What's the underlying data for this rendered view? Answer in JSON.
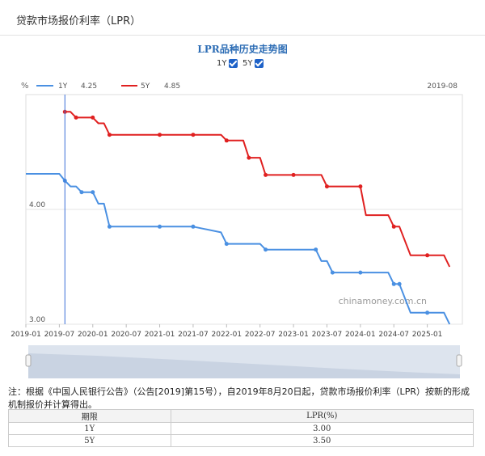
{
  "page": {
    "title": "贷款市场报价利率（LPR）"
  },
  "chart_header": {
    "title": "LPR品种历史走势图",
    "toggles": [
      {
        "label": "1Y",
        "checked": true
      },
      {
        "label": "5Y",
        "checked": true
      }
    ]
  },
  "legend": {
    "unit": "%",
    "items": [
      {
        "name": "1Y",
        "value": "4.25",
        "color": "#4a90e2"
      },
      {
        "name": "5Y",
        "value": "4.85",
        "color": "#e02020"
      }
    ],
    "cursor_date": "2019-08"
  },
  "watermark": "chinamoney.com.cn",
  "note": "注：根据《中国人民银行公告》（公告[2019]第15号），自2019年8月20日起，贷款市场报价利率（LPR）按新的形成机制报价并计算得出。",
  "table": {
    "headers": [
      "期限",
      "LPR(%)"
    ],
    "rows": [
      [
        "1Y",
        "3.00"
      ],
      [
        "5Y",
        "3.50"
      ]
    ]
  },
  "chart_data": {
    "type": "line",
    "x_start": "2019-01",
    "x_end": "2025-07",
    "xticks": [
      "2019-01",
      "2019-07",
      "2020-01",
      "2020-07",
      "2021-01",
      "2021-07",
      "2022-01",
      "2022-07",
      "2023-01",
      "2023-07",
      "2024-01",
      "2024-07",
      "2025-01"
    ],
    "yticks": [
      {
        "value": 4.0,
        "label": "4.00"
      },
      {
        "value": 3.0,
        "label": "3.00"
      }
    ],
    "ylim": [
      3.0,
      5.0
    ],
    "cursor_x": "2019-08",
    "series": [
      {
        "name": "1Y",
        "color": "#4a90e2",
        "points": [
          [
            "2019-01",
            4.31
          ],
          [
            "2019-07",
            4.31
          ],
          [
            "2019-08",
            4.25
          ],
          [
            "2019-09",
            4.2
          ],
          [
            "2019-10",
            4.2
          ],
          [
            "2019-11",
            4.15
          ],
          [
            "2020-01",
            4.15
          ],
          [
            "2020-02",
            4.05
          ],
          [
            "2020-03",
            4.05
          ],
          [
            "2020-04",
            3.85
          ],
          [
            "2020-05",
            3.85
          ],
          [
            "2021-01",
            3.85
          ],
          [
            "2021-07",
            3.85
          ],
          [
            "2021-12",
            3.8
          ],
          [
            "2022-01",
            3.7
          ],
          [
            "2022-07",
            3.7
          ],
          [
            "2022-08",
            3.65
          ],
          [
            "2023-01",
            3.65
          ],
          [
            "2023-05",
            3.65
          ],
          [
            "2023-06",
            3.55
          ],
          [
            "2023-07",
            3.55
          ],
          [
            "2023-08",
            3.45
          ],
          [
            "2024-01",
            3.45
          ],
          [
            "2024-05",
            3.45
          ],
          [
            "2024-06",
            3.45
          ],
          [
            "2024-07",
            3.35
          ],
          [
            "2024-08",
            3.35
          ],
          [
            "2024-10",
            3.1
          ],
          [
            "2025-01",
            3.1
          ],
          [
            "2025-04",
            3.1
          ],
          [
            "2025-05",
            3.0
          ]
        ],
        "markers": [
          "2019-08",
          "2019-11",
          "2020-01",
          "2020-04",
          "2021-01",
          "2021-07",
          "2022-01",
          "2022-08",
          "2023-05",
          "2023-08",
          "2024-01",
          "2024-07",
          "2024-08",
          "2025-01"
        ]
      },
      {
        "name": "5Y",
        "color": "#e02020",
        "points": [
          [
            "2019-08",
            4.85
          ],
          [
            "2019-09",
            4.85
          ],
          [
            "2019-10",
            4.8
          ],
          [
            "2020-01",
            4.8
          ],
          [
            "2020-02",
            4.75
          ],
          [
            "2020-03",
            4.75
          ],
          [
            "2020-04",
            4.65
          ],
          [
            "2020-05",
            4.65
          ],
          [
            "2021-01",
            4.65
          ],
          [
            "2021-07",
            4.65
          ],
          [
            "2021-12",
            4.65
          ],
          [
            "2022-01",
            4.6
          ],
          [
            "2022-04",
            4.6
          ],
          [
            "2022-05",
            4.45
          ],
          [
            "2022-07",
            4.45
          ],
          [
            "2022-08",
            4.3
          ],
          [
            "2023-01",
            4.3
          ],
          [
            "2023-06",
            4.3
          ],
          [
            "2023-07",
            4.2
          ],
          [
            "2024-01",
            4.2
          ],
          [
            "2024-02",
            3.95
          ],
          [
            "2024-06",
            3.95
          ],
          [
            "2024-07",
            3.85
          ],
          [
            "2024-08",
            3.85
          ],
          [
            "2024-10",
            3.6
          ],
          [
            "2025-01",
            3.6
          ],
          [
            "2025-04",
            3.6
          ],
          [
            "2025-05",
            3.5
          ]
        ],
        "markers": [
          "2019-08",
          "2019-10",
          "2020-01",
          "2020-04",
          "2021-01",
          "2021-07",
          "2022-01",
          "2022-05",
          "2022-08",
          "2023-01",
          "2023-07",
          "2024-01",
          "2024-07",
          "2025-01"
        ]
      }
    ]
  }
}
